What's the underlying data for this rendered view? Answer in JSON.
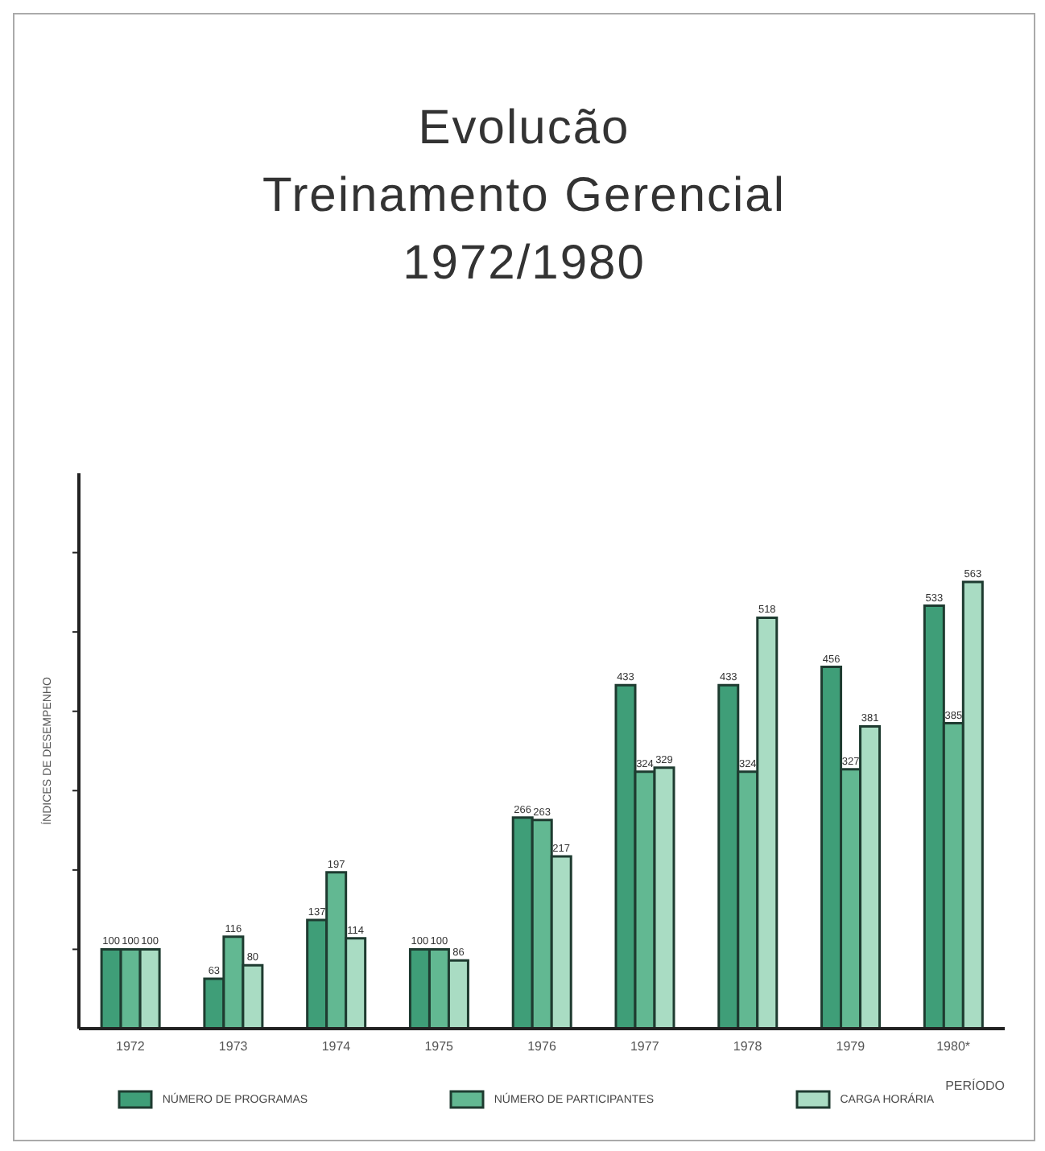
{
  "chart_data": {
    "type": "bar",
    "title": "Evolucão\nTreinamento Gerencial\n1972/1980",
    "xlabel": "PERÍODO",
    "ylabel": "ÍNDICES DE DESEMPENHO",
    "categories": [
      "1972",
      "1973",
      "1974",
      "1975",
      "1976",
      "1977",
      "1978",
      "1979",
      "1980*"
    ],
    "series": [
      {
        "name": "NÚMERO DE PROGRAMAS",
        "color": "#3f9e78",
        "values": [
          100,
          63,
          137,
          100,
          266,
          433,
          433,
          456,
          533
        ]
      },
      {
        "name": "NÚMERO DE PARTICIPANTES",
        "color": "#62b892",
        "values": [
          100,
          116,
          197,
          100,
          263,
          324,
          324,
          327,
          385
        ]
      },
      {
        "name": "CARGA HORÁRIA",
        "color": "#a9dcc3",
        "values": [
          100,
          80,
          114,
          86,
          217,
          329,
          518,
          381,
          563
        ]
      }
    ],
    "ylim": [
      0,
      700
    ],
    "yticks": [
      {
        "value": 100,
        "label": null
      },
      {
        "value": 200,
        "label": null
      },
      {
        "value": 300,
        "label": null
      },
      {
        "value": 400,
        "label": null
      },
      {
        "value": 500,
        "label": null
      },
      {
        "value": 600,
        "label": null
      }
    ],
    "tick_labels": "x",
    "data_labels": true,
    "legend": "bottom",
    "grid": false
  }
}
